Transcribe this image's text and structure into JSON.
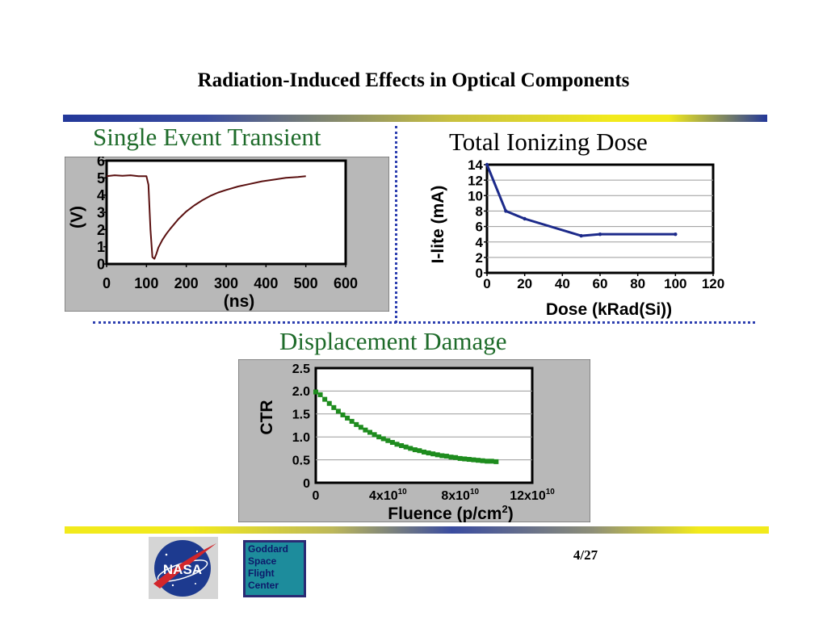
{
  "slide": {
    "title": "Radiation-Induced Effects in Optical Components",
    "page_number": "4/27"
  },
  "logos": {
    "nasa": {
      "text": "NASA",
      "icon": "nasa-meatball-logo"
    },
    "gsfc": {
      "text": "Goddard Space Flight Center",
      "icon": "goddard-logo"
    }
  },
  "colors": {
    "section_title_green": "#1e6b2a",
    "panel_gray": "#b8b8b8",
    "tid_line": "#1c2a8a",
    "dd_marker": "#1e8c1e",
    "divider_dots": "#2d3fb0"
  },
  "chart_data": [
    {
      "id": "set",
      "type": "line",
      "title": "Single Event Transient",
      "xlabel": "(ns)",
      "ylabel": "(V)",
      "xlim": [
        0,
        600
      ],
      "ylim": [
        0,
        6
      ],
      "x_ticks": [
        "0",
        "100",
        "200",
        "300",
        "400",
        "500",
        "600"
      ],
      "y_ticks": [
        "0",
        "1",
        "2",
        "3",
        "4",
        "5",
        "6"
      ],
      "grid": false,
      "series": [
        {
          "color": "#5a1010",
          "x": [
            0,
            20,
            40,
            60,
            80,
            100,
            105,
            110,
            115,
            120,
            125,
            130,
            140,
            150,
            160,
            180,
            200,
            220,
            240,
            260,
            280,
            300,
            330,
            360,
            390,
            420,
            450,
            480,
            500
          ],
          "y": [
            5.1,
            5.15,
            5.12,
            5.15,
            5.1,
            5.1,
            4.6,
            2.0,
            0.4,
            0.3,
            0.6,
            0.95,
            1.4,
            1.75,
            2.05,
            2.6,
            3.05,
            3.4,
            3.7,
            3.95,
            4.15,
            4.3,
            4.5,
            4.65,
            4.8,
            4.9,
            5.0,
            5.05,
            5.1
          ]
        }
      ]
    },
    {
      "id": "tid",
      "type": "line",
      "title": "Total Ionizing Dose",
      "xlabel": "Dose (kRad(Si))",
      "ylabel": "I-lite (mA)",
      "xlim": [
        0,
        120
      ],
      "ylim": [
        0,
        14
      ],
      "x_ticks": [
        "0",
        "20",
        "40",
        "60",
        "80",
        "100",
        "120"
      ],
      "y_ticks": [
        "0",
        "2",
        "4",
        "6",
        "8",
        "10",
        "12",
        "14"
      ],
      "grid": true,
      "series": [
        {
          "color": "#1c2a8a",
          "x": [
            0,
            10,
            20,
            50,
            60,
            100
          ],
          "y": [
            14,
            8,
            7,
            4.8,
            5,
            5
          ]
        }
      ]
    },
    {
      "id": "dd",
      "type": "scatter",
      "title": "Displacement Damage",
      "xlabel": "Fluence (p/cm2)",
      "ylabel": "CTR",
      "xlim": [
        0,
        12
      ],
      "ylim": [
        0,
        2.5
      ],
      "x_ticks": [
        "0",
        "4x1010",
        "8x1010",
        "12x1010"
      ],
      "y_ticks": [
        "0",
        "0.5",
        "1.0",
        "1.5",
        "2.0",
        "2.5"
      ],
      "grid": true,
      "series": [
        {
          "color": "#1e8c1e",
          "x": [
            0,
            0.25,
            0.5,
            0.75,
            1,
            1.25,
            1.5,
            1.75,
            2,
            2.25,
            2.5,
            2.75,
            3,
            3.25,
            3.5,
            3.75,
            4,
            4.25,
            4.5,
            4.75,
            5,
            5.25,
            5.5,
            5.75,
            6,
            6.25,
            6.5,
            6.75,
            7,
            7.25,
            7.5,
            7.75,
            8,
            8.25,
            8.5,
            8.75,
            9,
            9.25,
            9.5,
            9.75,
            10
          ],
          "y": [
            1.98,
            1.92,
            1.82,
            1.73,
            1.64,
            1.56,
            1.48,
            1.41,
            1.34,
            1.27,
            1.21,
            1.15,
            1.1,
            1.05,
            1.0,
            0.96,
            0.92,
            0.88,
            0.84,
            0.81,
            0.78,
            0.75,
            0.72,
            0.7,
            0.67,
            0.65,
            0.63,
            0.61,
            0.59,
            0.58,
            0.56,
            0.55,
            0.53,
            0.52,
            0.51,
            0.5,
            0.49,
            0.48,
            0.47,
            0.47,
            0.46
          ]
        }
      ]
    }
  ]
}
